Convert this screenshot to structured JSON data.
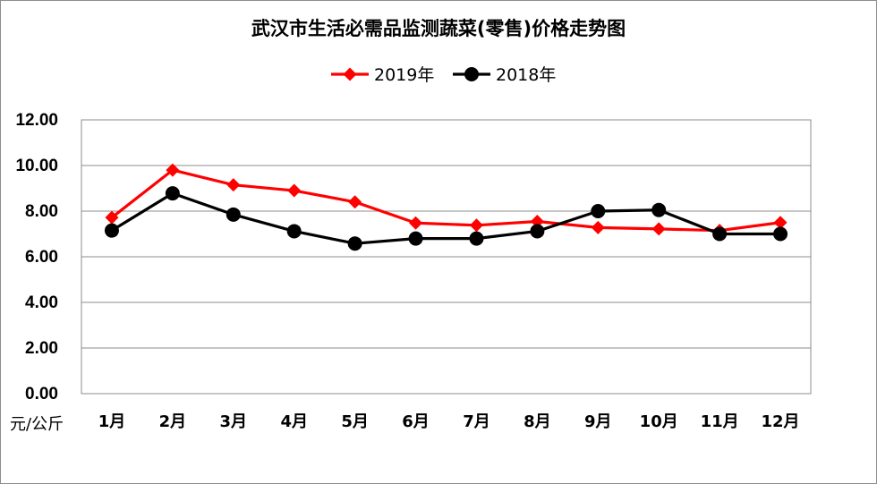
{
  "chart_data": {
    "type": "line",
    "title": "武汉市生活必需品监测蔬菜(零售)价格走势图",
    "ylabel": "元/公斤",
    "xlabel": "",
    "categories": [
      "1月",
      "2月",
      "3月",
      "4月",
      "5月",
      "6月",
      "7月",
      "8月",
      "9月",
      "10月",
      "11月",
      "12月"
    ],
    "ylim": [
      0,
      12
    ],
    "yticks": [
      "0.00",
      "2.00",
      "4.00",
      "6.00",
      "8.00",
      "10.00",
      "12.00"
    ],
    "grid": true,
    "legend_position": "top-center",
    "series": [
      {
        "name": "2019年",
        "color": "#ff0000",
        "marker": "diamond",
        "values": [
          7.72,
          9.8,
          9.15,
          8.9,
          8.4,
          7.48,
          7.38,
          7.55,
          7.28,
          7.22,
          7.15,
          7.5
        ]
      },
      {
        "name": "2018年",
        "color": "#000000",
        "marker": "circle",
        "values": [
          7.15,
          8.78,
          7.85,
          7.12,
          6.58,
          6.8,
          6.8,
          7.12,
          8.0,
          8.05,
          7.0,
          7.0
        ]
      }
    ]
  }
}
